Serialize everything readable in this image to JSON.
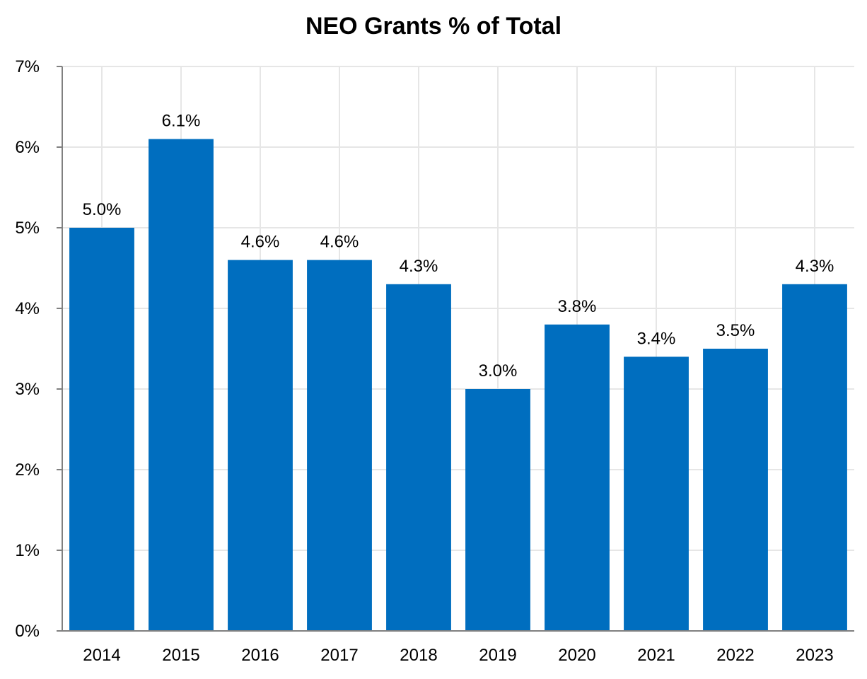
{
  "colors": {
    "bar": "#006EBF",
    "grid": "#E6E6E6",
    "axis": "#808080"
  },
  "chart_data": {
    "type": "bar",
    "title": "NEO Grants % of Total",
    "xlabel": "",
    "ylabel": "",
    "categories": [
      "2014",
      "2015",
      "2016",
      "2017",
      "2018",
      "2019",
      "2020",
      "2021",
      "2022",
      "2023"
    ],
    "values": [
      5.0,
      6.1,
      4.6,
      4.6,
      4.3,
      3.0,
      3.8,
      3.4,
      3.5,
      4.3
    ],
    "data_labels": [
      "5.0%",
      "6.1%",
      "4.6%",
      "4.6%",
      "4.3%",
      "3.0%",
      "3.8%",
      "3.4%",
      "3.5%",
      "4.3%"
    ],
    "ylim": [
      0,
      7
    ],
    "yticks": [
      0,
      1,
      2,
      3,
      4,
      5,
      6,
      7
    ],
    "ytick_labels": [
      "0%",
      "1%",
      "2%",
      "3%",
      "4%",
      "5%",
      "6%",
      "7%"
    ],
    "grid": true,
    "legend": "none"
  }
}
